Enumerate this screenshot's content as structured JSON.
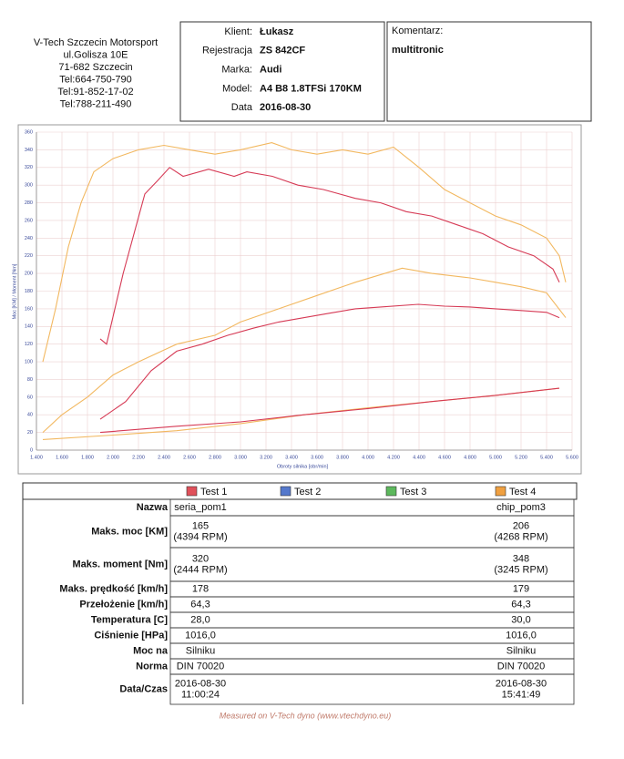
{
  "header": {
    "company": [
      "V-Tech Szczecin Motorsport",
      "ul.Golisza 10E",
      "71-682 Szczecin",
      "Tel:664-750-790",
      "Tel:91-852-17-02",
      "Tel:788-211-490"
    ],
    "client": [
      {
        "label": "Klient:",
        "value": "Łukasz"
      },
      {
        "label": "Rejestracja",
        "value": "ZS 842CF"
      },
      {
        "label": "Marka:",
        "value": "Audi"
      },
      {
        "label": "Model:",
        "value": "A4 B8  1.8TFSi  170KM"
      },
      {
        "label": "Data",
        "value": "2016-08-30"
      }
    ],
    "comment": {
      "label": "Komentarz:",
      "value": "multitronic"
    }
  },
  "chart_data": {
    "type": "line",
    "x_label": "Obroty silnika [obr/min]",
    "y_label": "Moc [KM] / Moment [Nm]",
    "xlim": [
      1400,
      5600
    ],
    "xticks": [
      {
        "value": 1400,
        "label": "1.400"
      },
      {
        "value": 1600,
        "label": "1.600"
      },
      {
        "value": 1800,
        "label": "1.800"
      },
      {
        "value": 2000,
        "label": "2.000"
      },
      {
        "value": 2200,
        "label": "2.200"
      },
      {
        "value": 2400,
        "label": "2.400"
      },
      {
        "value": 2600,
        "label": "2.600"
      },
      {
        "value": 2800,
        "label": "2.800"
      },
      {
        "value": 3000,
        "label": "3.000"
      },
      {
        "value": 3200,
        "label": "3.200"
      },
      {
        "value": 3400,
        "label": "3.400"
      },
      {
        "value": 3600,
        "label": "3.600"
      },
      {
        "value": 3800,
        "label": "3.800"
      },
      {
        "value": 4000,
        "label": "4.000"
      },
      {
        "value": 4200,
        "label": "4.200"
      },
      {
        "value": 4400,
        "label": "4.400"
      },
      {
        "value": 4600,
        "label": "4.600"
      },
      {
        "value": 4800,
        "label": "4.800"
      },
      {
        "value": 5000,
        "label": "5.000"
      },
      {
        "value": 5200,
        "label": "5.200"
      },
      {
        "value": 5400,
        "label": "5.400"
      },
      {
        "value": 5600,
        "label": "5.600"
      }
    ],
    "ylim": [
      0,
      360
    ],
    "yticks": [
      0,
      20,
      40,
      60,
      80,
      100,
      120,
      140,
      160,
      180,
      200,
      220,
      240,
      260,
      280,
      300,
      320,
      340,
      360
    ],
    "grid": true,
    "series": [
      {
        "color": "#f2b860",
        "x": [
          1450,
          1550,
          1650,
          1750,
          1850,
          2000,
          2200,
          2400,
          2600,
          2800,
          3000,
          3245,
          3400,
          3600,
          3800,
          4000,
          4200,
          4400,
          4600,
          4800,
          5000,
          5200,
          5400,
          5500,
          5550
        ],
        "values": [
          100,
          160,
          230,
          280,
          315,
          330,
          340,
          345,
          340,
          335,
          340,
          348,
          340,
          335,
          340,
          335,
          343,
          320,
          295,
          280,
          265,
          255,
          240,
          220,
          190
        ]
      },
      {
        "color": "#f2b860",
        "x": [
          1450,
          1600,
          1800,
          2000,
          2200,
          2500,
          2800,
          3000,
          3300,
          3600,
          3900,
          4268,
          4500,
          4800,
          5000,
          5200,
          5400,
          5550
        ],
        "values": [
          20,
          40,
          60,
          85,
          100,
          120,
          130,
          145,
          160,
          175,
          190,
          206,
          200,
          195,
          190,
          185,
          178,
          150
        ]
      },
      {
        "color": "#f2b860",
        "x": [
          1450,
          2000,
          2500,
          3000,
          3500,
          4000,
          4500,
          5000,
          5500
        ],
        "values": [
          12,
          17,
          22,
          30,
          40,
          48,
          55,
          62,
          70
        ]
      },
      {
        "color": "#d63a55",
        "x": [
          1900,
          1950,
          2080,
          2250,
          2350,
          2444,
          2550,
          2750,
          2950,
          3050,
          3250,
          3450,
          3650,
          3900,
          4100,
          4300,
          4500,
          4700,
          4900,
          5100,
          5300,
          5450,
          5500
        ],
        "values": [
          126,
          120,
          200,
          290,
          305,
          320,
          310,
          318,
          310,
          315,
          310,
          300,
          295,
          285,
          280,
          270,
          265,
          255,
          245,
          230,
          220,
          205,
          190
        ]
      },
      {
        "color": "#d63a55",
        "x": [
          1900,
          2100,
          2300,
          2500,
          2700,
          2900,
          3100,
          3300,
          3500,
          3700,
          3900,
          4100,
          4394,
          4600,
          4800,
          5000,
          5200,
          5400,
          5500
        ],
        "values": [
          35,
          55,
          90,
          112,
          120,
          130,
          138,
          145,
          150,
          155,
          160,
          162,
          165,
          163,
          162,
          160,
          158,
          156,
          150
        ]
      },
      {
        "color": "#d63a55",
        "x": [
          1900,
          2500,
          3000,
          3500,
          4000,
          4500,
          5000,
          5500
        ],
        "values": [
          20,
          27,
          32,
          40,
          47,
          55,
          62,
          70
        ]
      }
    ]
  },
  "results": {
    "columns": [
      {
        "name": "Test 1",
        "color": "#e0505a"
      },
      {
        "name": "Test 2",
        "color": "#5478cc"
      },
      {
        "name": "Test 3",
        "color": "#5cb85c"
      },
      {
        "name": "Test 4",
        "color": "#f0a040"
      }
    ],
    "rows": [
      {
        "label": "Nazwa",
        "test1": [
          "seria_pom1"
        ],
        "test4": [
          "chip_pom3"
        ]
      },
      {
        "label": "Maks. moc [KM]",
        "test1": [
          "165",
          "(4394 RPM)"
        ],
        "test4": [
          "206",
          "(4268 RPM)"
        ]
      },
      {
        "label": "Maks. moment [Nm]",
        "test1": [
          "320",
          "(2444 RPM)"
        ],
        "test4": [
          "348",
          "(3245 RPM)"
        ]
      },
      {
        "label": "Maks. prędkość [km/h]",
        "test1": [
          "178"
        ],
        "test4": [
          "179"
        ]
      },
      {
        "label": "Przełożenie [km/h]",
        "test1": [
          "64,3"
        ],
        "test4": [
          "64,3"
        ]
      },
      {
        "label": "Temperatura [C]",
        "test1": [
          "28,0"
        ],
        "test4": [
          "30,0"
        ]
      },
      {
        "label": "Ciśnienie [HPa]",
        "test1": [
          "1016,0"
        ],
        "test4": [
          "1016,0"
        ]
      },
      {
        "label": "Moc na",
        "test1": [
          "Silniku"
        ],
        "test4": [
          "Silniku"
        ]
      },
      {
        "label": "Norma",
        "test1": [
          "DIN 70020"
        ],
        "test4": [
          "DIN 70020"
        ]
      },
      {
        "label": "Data/Czas",
        "test1": [
          "2016-08-30",
          "11:00:24"
        ],
        "test4": [
          "2016-08-30",
          "15:41:49"
        ]
      }
    ]
  },
  "footer": "Measured on V-Tech dyno (www.vtechdyno.eu)"
}
